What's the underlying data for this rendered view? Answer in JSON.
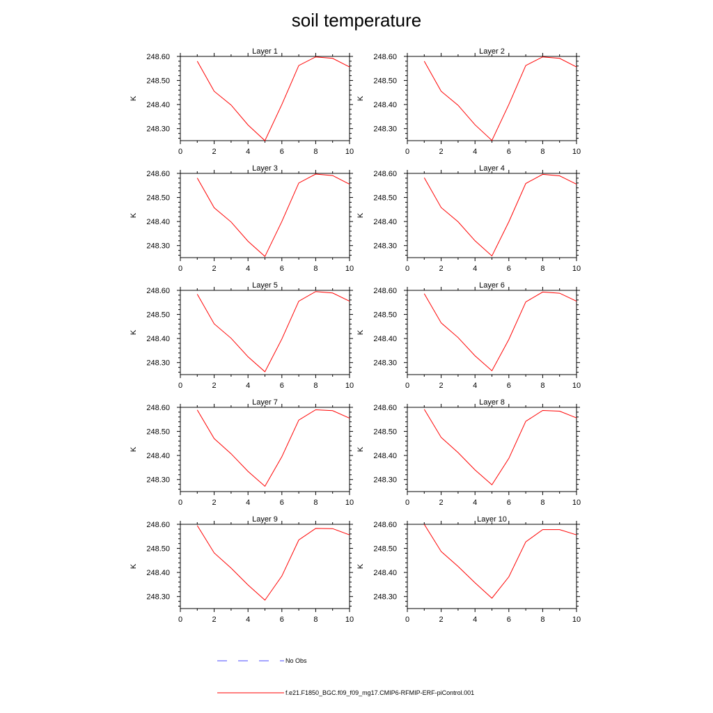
{
  "title": "soil temperature",
  "chart_data": {
    "type": "line",
    "panels": [
      {
        "title": "Layer 1",
        "x": [
          1,
          2,
          3,
          4,
          5,
          6,
          7,
          8,
          9,
          10
        ],
        "y": [
          248.58,
          248.455,
          248.398,
          248.315,
          248.25,
          248.4,
          248.562,
          248.598,
          248.592,
          248.556
        ]
      },
      {
        "title": "Layer 2",
        "x": [
          1,
          2,
          3,
          4,
          5,
          6,
          7,
          8,
          9,
          10
        ],
        "y": [
          248.58,
          248.455,
          248.397,
          248.316,
          248.251,
          248.4,
          248.562,
          248.598,
          248.592,
          248.556
        ]
      },
      {
        "title": "Layer 3",
        "x": [
          1,
          2,
          3,
          4,
          5,
          6,
          7,
          8,
          9,
          10
        ],
        "y": [
          248.581,
          248.457,
          248.398,
          248.318,
          248.255,
          248.4,
          248.56,
          248.597,
          248.591,
          248.555
        ]
      },
      {
        "title": "Layer 4",
        "x": [
          1,
          2,
          3,
          4,
          5,
          6,
          7,
          8,
          9,
          10
        ],
        "y": [
          248.582,
          248.458,
          248.399,
          248.32,
          248.257,
          248.399,
          248.558,
          248.596,
          248.59,
          248.555
        ]
      },
      {
        "title": "Layer 5",
        "x": [
          1,
          2,
          3,
          4,
          5,
          6,
          7,
          8,
          9,
          10
        ],
        "y": [
          248.584,
          248.461,
          248.401,
          248.324,
          248.262,
          248.398,
          248.555,
          248.595,
          248.589,
          248.555
        ]
      },
      {
        "title": "Layer 6",
        "x": [
          1,
          2,
          3,
          4,
          5,
          6,
          7,
          8,
          9,
          10
        ],
        "y": [
          248.586,
          248.465,
          248.404,
          248.328,
          248.266,
          248.396,
          248.552,
          248.593,
          248.588,
          248.555
        ]
      },
      {
        "title": "Layer 7",
        "x": [
          1,
          2,
          3,
          4,
          5,
          6,
          7,
          8,
          9,
          10
        ],
        "y": [
          248.589,
          248.47,
          248.407,
          248.334,
          248.272,
          248.395,
          248.547,
          248.59,
          248.586,
          248.555
        ]
      },
      {
        "title": "Layer 8",
        "x": [
          1,
          2,
          3,
          4,
          5,
          6,
          7,
          8,
          9,
          10
        ],
        "y": [
          248.592,
          248.475,
          248.412,
          248.34,
          248.278,
          248.388,
          248.542,
          248.587,
          248.584,
          248.556
        ]
      },
      {
        "title": "Layer 9",
        "x": [
          1,
          2,
          3,
          4,
          5,
          6,
          7,
          8,
          9,
          10
        ],
        "y": [
          248.595,
          248.481,
          248.418,
          248.348,
          248.285,
          248.385,
          248.535,
          248.583,
          248.582,
          248.556
        ]
      },
      {
        "title": "Layer 10",
        "x": [
          1,
          2,
          3,
          4,
          5,
          6,
          7,
          8,
          9,
          10
        ],
        "y": [
          248.6,
          248.487,
          248.425,
          248.357,
          248.293,
          248.382,
          248.527,
          248.578,
          248.578,
          248.556
        ]
      }
    ],
    "ylabel": "K",
    "ylim": [
      248.25,
      248.6
    ],
    "xlim": [
      0,
      10
    ],
    "xticks": [
      "0",
      "2",
      "4",
      "6",
      "8",
      "10"
    ],
    "yticks": [
      "248.30",
      "248.40",
      "248.50",
      "248.60"
    ],
    "yticks_values": [
      248.3,
      248.4,
      248.5,
      248.6
    ],
    "xticks_values": [
      0,
      2,
      4,
      6,
      8,
      10
    ],
    "series_color": "#ff0000",
    "obs_color": "#4a4aff",
    "grid": false
  },
  "legend": {
    "obs_label": "No Obs",
    "model_label": "f.e21.F1850_BGC.f09_f09_mg17.CMIP6-RFMIP-ERF-piControl.001"
  }
}
